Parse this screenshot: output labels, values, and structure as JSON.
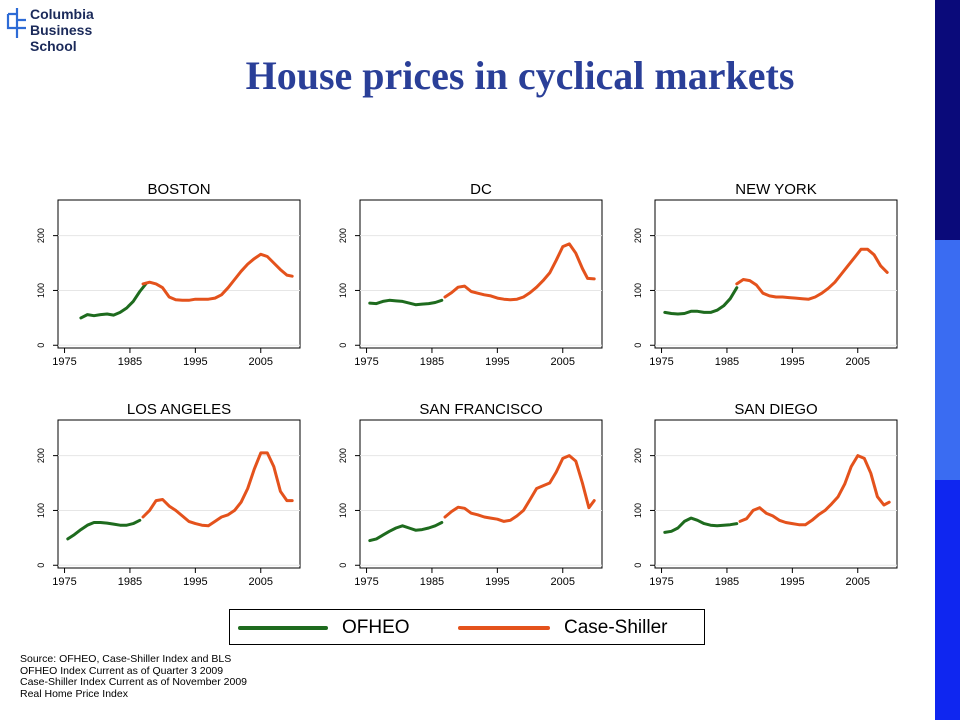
{
  "logo": {
    "line1": "Columbia",
    "line2": "Business",
    "line3": "School"
  },
  "title": "House prices in cyclical markets",
  "colors": {
    "ofheo": "#1e6b1e",
    "case_shiller": "#e4521c",
    "title": "#2a3f98",
    "bar_dark": "#0a0a7a",
    "bar_light": "#3a6cf2",
    "bar_mid": "#0f26f0"
  },
  "legend": {
    "ofheo": "OFHEO",
    "case_shiller": "Case-Shiller"
  },
  "notes": [
    "Source: OFHEO, Case-Shiller Index and BLS",
    "OFHEO Index Current as of Quarter 3 2009",
    "Case-Shiller Index Current as of November 2009",
    "Real Home Price Index"
  ],
  "chart_data": [
    {
      "type": "line",
      "title": "BOSTON",
      "xlim": [
        1974,
        2011
      ],
      "ylim": [
        -5,
        265
      ],
      "xticks": [
        "1975",
        "1985",
        "1995",
        "2005"
      ],
      "yticks": [
        "0",
        "100",
        "200"
      ],
      "series": [
        {
          "name": "OFHEO",
          "x": [
            1977.5,
            1978.5,
            1979.5,
            1980.5,
            1981.5,
            1982.5,
            1983.5,
            1984.5,
            1985.5,
            1986.5,
            1987.5
          ],
          "y": [
            50,
            56,
            54,
            56,
            57,
            55,
            60,
            68,
            80,
            98,
            113
          ]
        },
        {
          "name": "Case-Shiller",
          "x": [
            1987,
            1988,
            1989,
            1990,
            1991,
            1992,
            1993,
            1994,
            1995,
            1996,
            1997,
            1998,
            1999,
            2000,
            2001,
            2002,
            2003,
            2004,
            2005,
            2006,
            2007,
            2008,
            2009,
            2009.8
          ],
          "y": [
            112,
            115,
            112,
            105,
            88,
            83,
            82,
            82,
            84,
            84,
            84,
            86,
            92,
            105,
            120,
            135,
            148,
            158,
            166,
            162,
            150,
            138,
            128,
            126
          ]
        }
      ]
    },
    {
      "type": "line",
      "title": "DC",
      "xlim": [
        1974,
        2011
      ],
      "ylim": [
        -5,
        265
      ],
      "xticks": [
        "1975",
        "1985",
        "1995",
        "2005"
      ],
      "yticks": [
        "0",
        "100",
        "200"
      ],
      "series": [
        {
          "name": "OFHEO",
          "x": [
            1975.5,
            1976.5,
            1977.5,
            1978.5,
            1979.5,
            1980.5,
            1981.5,
            1982.5,
            1983.5,
            1984.5,
            1985.5,
            1986.5
          ],
          "y": [
            77,
            76,
            80,
            82,
            81,
            80,
            77,
            74,
            75,
            76,
            78,
            82
          ]
        },
        {
          "name": "Case-Shiller",
          "x": [
            1987,
            1988,
            1989,
            1990,
            1991,
            1992,
            1993,
            1994,
            1995,
            1996,
            1997,
            1998,
            1999,
            2000,
            2001,
            2002,
            2003,
            2004,
            2005,
            2006,
            2007,
            2008,
            2008.8,
            2009.8
          ],
          "y": [
            88,
            96,
            106,
            108,
            98,
            95,
            92,
            90,
            86,
            84,
            83,
            84,
            88,
            96,
            106,
            118,
            132,
            155,
            180,
            185,
            168,
            140,
            122,
            121
          ]
        }
      ]
    },
    {
      "type": "line",
      "title": "NEW YORK",
      "xlim": [
        1974,
        2011
      ],
      "ylim": [
        -5,
        265
      ],
      "xticks": [
        "1975",
        "1985",
        "1995",
        "2005"
      ],
      "yticks": [
        "0",
        "100",
        "200"
      ],
      "series": [
        {
          "name": "OFHEO",
          "x": [
            1975.5,
            1976.5,
            1977.5,
            1978.5,
            1979.5,
            1980.5,
            1981.5,
            1982.5,
            1983.5,
            1984.5,
            1985.5,
            1986.5
          ],
          "y": [
            60,
            58,
            57,
            58,
            62,
            62,
            60,
            60,
            64,
            72,
            85,
            105
          ]
        },
        {
          "name": "Case-Shiller",
          "x": [
            1986.5,
            1987.5,
            1988.5,
            1989.5,
            1990.5,
            1991.5,
            1992.5,
            1993.5,
            1994.5,
            1995.5,
            1996.5,
            1997.5,
            1998.5,
            1999.5,
            2000.5,
            2001.5,
            2002.5,
            2003.5,
            2004.5,
            2005.5,
            2006.5,
            2007.5,
            2008.5,
            2009.5
          ],
          "y": [
            112,
            120,
            118,
            110,
            95,
            90,
            88,
            88,
            87,
            86,
            85,
            84,
            88,
            95,
            104,
            115,
            130,
            145,
            160,
            175,
            175,
            165,
            145,
            133
          ]
        }
      ]
    },
    {
      "type": "line",
      "title": "LOS ANGELES",
      "xlim": [
        1974,
        2011
      ],
      "ylim": [
        -5,
        265
      ],
      "xticks": [
        "1975",
        "1985",
        "1995",
        "2005"
      ],
      "yticks": [
        "0",
        "100",
        "200"
      ],
      "series": [
        {
          "name": "OFHEO",
          "x": [
            1975.5,
            1976.5,
            1977.5,
            1978.5,
            1979.5,
            1980.5,
            1981.5,
            1982.5,
            1983.5,
            1984.5,
            1985.5,
            1986.5
          ],
          "y": [
            48,
            56,
            65,
            73,
            78,
            78,
            77,
            75,
            73,
            73,
            76,
            82
          ]
        },
        {
          "name": "Case-Shiller",
          "x": [
            1987,
            1988,
            1989,
            1990,
            1991,
            1992,
            1993,
            1994,
            1995,
            1996,
            1997,
            1998,
            1999,
            2000,
            2001,
            2002,
            2003,
            2004,
            2005,
            2006,
            2007,
            2008,
            2009,
            2009.8
          ],
          "y": [
            88,
            100,
            118,
            120,
            108,
            100,
            90,
            80,
            76,
            73,
            72,
            80,
            88,
            92,
            100,
            115,
            140,
            175,
            205,
            205,
            180,
            135,
            118,
            118
          ]
        }
      ]
    },
    {
      "type": "line",
      "title": "SAN FRANCISCO",
      "xlim": [
        1974,
        2011
      ],
      "ylim": [
        -5,
        265
      ],
      "xticks": [
        "1975",
        "1985",
        "1995",
        "2005"
      ],
      "yticks": [
        "0",
        "100",
        "200"
      ],
      "series": [
        {
          "name": "OFHEO",
          "x": [
            1975.5,
            1976.5,
            1977.5,
            1978.5,
            1979.5,
            1980.5,
            1981.5,
            1982.5,
            1983.5,
            1984.5,
            1985.5,
            1986.5
          ],
          "y": [
            45,
            48,
            55,
            62,
            68,
            72,
            68,
            64,
            65,
            68,
            72,
            78
          ]
        },
        {
          "name": "Case-Shiller",
          "x": [
            1987,
            1988,
            1989,
            1990,
            1991,
            1992,
            1993,
            1994,
            1995,
            1996,
            1997,
            1998,
            1999,
            2000,
            2001,
            2002,
            2003,
            2004,
            2005,
            2006,
            2007,
            2008,
            2009,
            2009.8
          ],
          "y": [
            88,
            98,
            106,
            104,
            95,
            92,
            88,
            86,
            84,
            80,
            82,
            90,
            100,
            120,
            140,
            145,
            150,
            170,
            195,
            200,
            190,
            150,
            105,
            118
          ]
        }
      ]
    },
    {
      "type": "line",
      "title": "SAN DIEGO",
      "xlim": [
        1974,
        2011
      ],
      "ylim": [
        -5,
        265
      ],
      "xticks": [
        "1975",
        "1985",
        "1995",
        "2005"
      ],
      "yticks": [
        "0",
        "100",
        "200"
      ],
      "series": [
        {
          "name": "OFHEO",
          "x": [
            1975.5,
            1976.5,
            1977.5,
            1978.5,
            1979.5,
            1980.5,
            1981.5,
            1982.5,
            1983.5,
            1984.5,
            1985.5,
            1986.5
          ],
          "y": [
            60,
            62,
            68,
            80,
            86,
            82,
            76,
            73,
            72,
            73,
            74,
            76
          ]
        },
        {
          "name": "Case-Shiller",
          "x": [
            1987,
            1988,
            1989,
            1990,
            1991,
            1992,
            1993,
            1994,
            1995,
            1996,
            1997,
            1998,
            1999,
            2000,
            2001,
            2002,
            2003,
            2004,
            2005,
            2006,
            2007,
            2008,
            2009,
            2009.8
          ],
          "y": [
            80,
            85,
            100,
            105,
            95,
            90,
            82,
            78,
            76,
            74,
            74,
            82,
            92,
            100,
            112,
            125,
            148,
            180,
            200,
            195,
            168,
            125,
            110,
            115
          ]
        }
      ]
    }
  ]
}
